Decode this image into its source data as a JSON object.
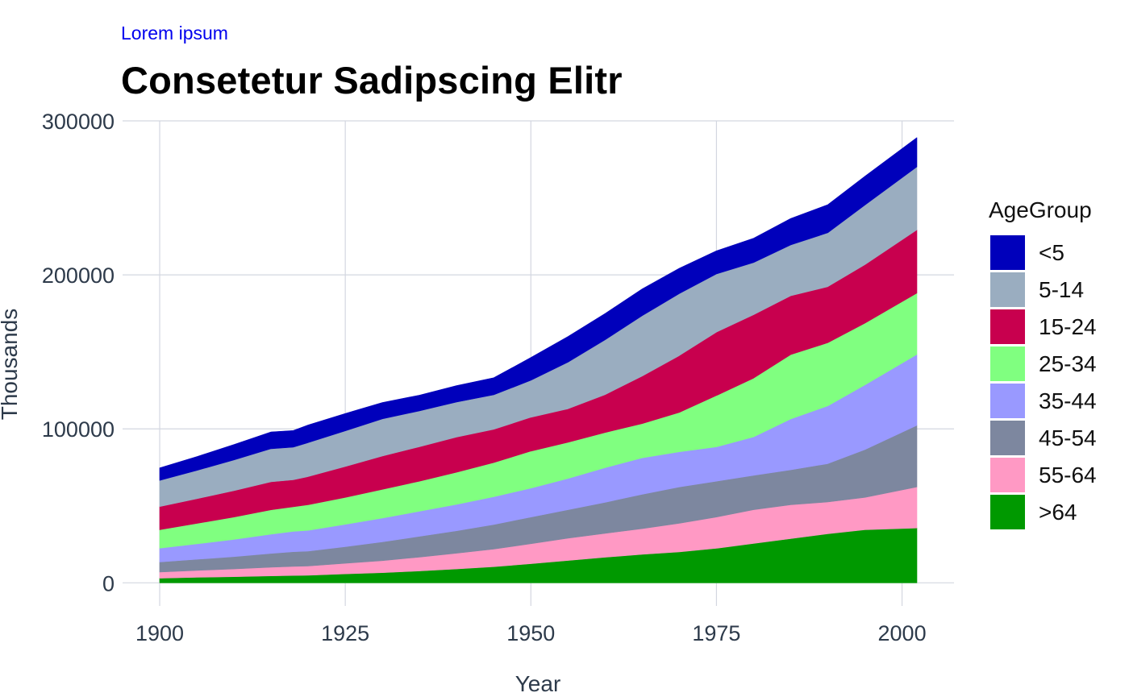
{
  "subtitle": "Lorem ipsum",
  "title": "Consetetur Sadipscing Elitr",
  "chart_data": {
    "type": "area",
    "stacked": true,
    "xlabel": "Year",
    "ylabel": "Thousands",
    "xlim": [
      1895,
      2007
    ],
    "ylim": [
      -15000,
      300000
    ],
    "xticks": [
      1900,
      1925,
      1950,
      1975,
      2000
    ],
    "yticks": [
      0,
      100000,
      200000,
      300000
    ],
    "grid": true,
    "legend_title": "AgeGroup",
    "legend_position": "right",
    "x": [
      1900,
      1905,
      1910,
      1915,
      1918,
      1920,
      1925,
      1930,
      1935,
      1940,
      1945,
      1950,
      1955,
      1960,
      1965,
      1970,
      1975,
      1980,
      1985,
      1990,
      1995,
      2002
    ],
    "series": [
      {
        "name": ">64",
        "color": "#009900",
        "values": [
          3000,
          3600,
          4000,
          4500,
          4800,
          4900,
          5800,
          6600,
          7700,
          9000,
          10500,
          12400,
          14500,
          16600,
          18500,
          20100,
          22400,
          25600,
          28700,
          31900,
          34500,
          35600
        ]
      },
      {
        "name": "55-64",
        "color": "#ff99c4",
        "values": [
          4000,
          4500,
          5000,
          5600,
          5900,
          6000,
          6900,
          7800,
          9000,
          10200,
          11400,
          13000,
          14500,
          15500,
          16700,
          18600,
          20300,
          21900,
          22000,
          20600,
          21000,
          26700
        ]
      },
      {
        "name": "45-54",
        "color": "#7d879f",
        "values": [
          6500,
          7200,
          8000,
          9000,
          9500,
          9700,
          10800,
          12200,
          13500,
          14600,
          16000,
          17300,
          18500,
          20200,
          22300,
          23600,
          23300,
          22300,
          22700,
          24900,
          31000,
          40000
        ]
      },
      {
        "name": "35-44",
        "color": "#9999ff",
        "values": [
          9000,
          10000,
          11200,
          12500,
          13200,
          13500,
          14500,
          15500,
          16300,
          17200,
          18000,
          18800,
          20300,
          22500,
          23700,
          22800,
          22300,
          25000,
          33000,
          37500,
          42000,
          46000
        ]
      },
      {
        "name": "25-34",
        "color": "#80ff80",
        "values": [
          12000,
          13300,
          14500,
          15800,
          16000,
          16600,
          17500,
          18600,
          19500,
          20800,
          22200,
          24000,
          23400,
          22800,
          22200,
          25600,
          33300,
          38100,
          41800,
          41000,
          40100,
          39900
        ]
      },
      {
        "name": "15-24",
        "color": "#c8004e",
        "values": [
          15000,
          16000,
          17100,
          18200,
          17500,
          18300,
          20000,
          21600,
          22400,
          22900,
          21600,
          22000,
          21800,
          24600,
          30900,
          36900,
          41200,
          41200,
          38200,
          36400,
          38000,
          41000
        ]
      },
      {
        "name": "5-14",
        "color": "#9aadc0",
        "values": [
          17000,
          18400,
          20000,
          21500,
          21200,
          22000,
          23200,
          24200,
          23300,
          22700,
          22400,
          24000,
          30300,
          35600,
          39200,
          40200,
          37800,
          33900,
          33000,
          35000,
          38700,
          41000
        ]
      },
      {
        "name": "<5",
        "color": "#0000bb",
        "values": [
          8200,
          9000,
          10000,
          10900,
          10800,
          11500,
          11300,
          10600,
          10200,
          10700,
          11100,
          14800,
          16700,
          17100,
          17400,
          16500,
          15000,
          15800,
          17200,
          18300,
          18700,
          18900
        ]
      }
    ]
  }
}
